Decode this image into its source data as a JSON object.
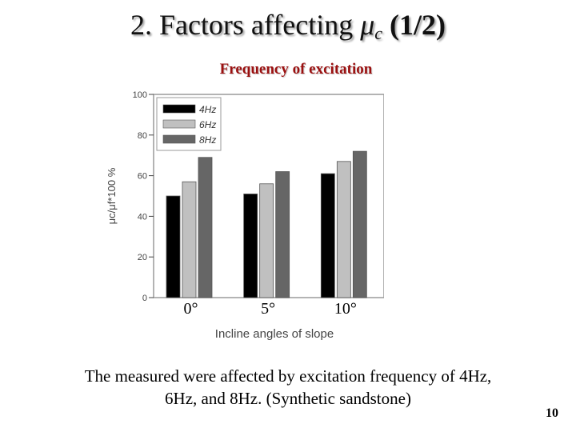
{
  "slide": {
    "title_text": "2. Factors affecting ",
    "title_symbol": "μ",
    "title_subscript": "c",
    "title_part": "(1/2)",
    "subtitle": "Frequency of excitation",
    "caption_line1": "The measured  were affected by excitation frequency of 4Hz,",
    "caption_line2": "6Hz, and 8Hz.  (Synthetic sandstone)",
    "page_number": "10"
  },
  "chart_data": {
    "type": "bar",
    "categories": [
      "0°",
      "5°",
      "10°"
    ],
    "series": [
      {
        "name": "4Hz",
        "values": [
          50,
          51,
          61
        ],
        "color": "#000000"
      },
      {
        "name": "6Hz",
        "values": [
          57,
          56,
          67
        ],
        "color": "#c0c0c0"
      },
      {
        "name": "8Hz",
        "values": [
          69,
          62,
          72
        ],
        "color": "#666666"
      }
    ],
    "xlabel": "Incline angles of slope",
    "ylabel": "μc/μf*100 %",
    "ylim": [
      0,
      100
    ],
    "yticks": [
      0,
      20,
      40,
      60,
      80,
      100
    ],
    "legend_position": "top-left"
  }
}
